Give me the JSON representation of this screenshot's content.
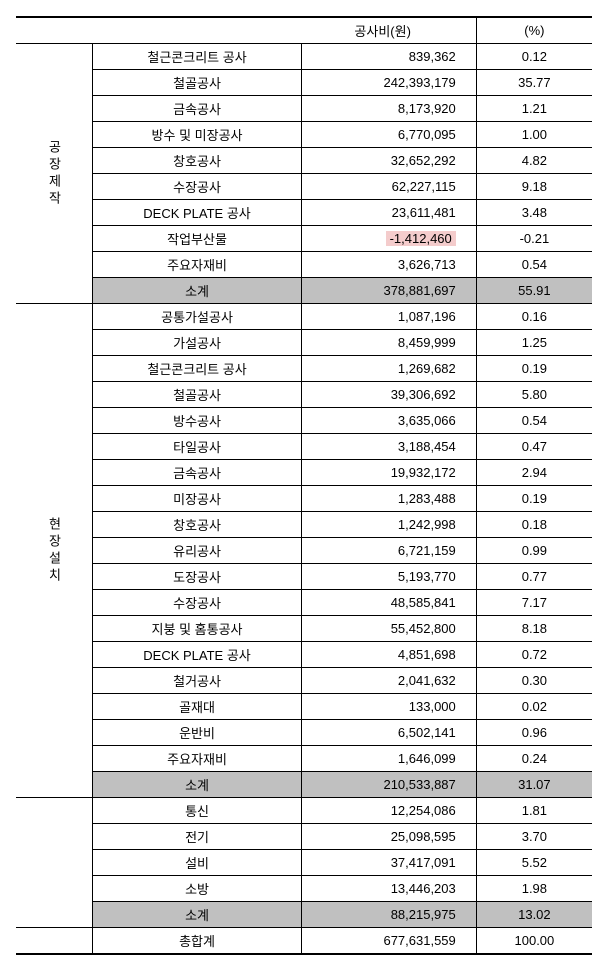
{
  "header": {
    "cost": "공사비(원)",
    "pct": "(%)"
  },
  "sections": [
    {
      "label": "공장제작",
      "rows": [
        {
          "name": "철근콘크리트 공사",
          "cost": "839,362",
          "pct": "0.12"
        },
        {
          "name": "철골공사",
          "cost": "242,393,179",
          "pct": "35.77"
        },
        {
          "name": "금속공사",
          "cost": "8,173,920",
          "pct": "1.21"
        },
        {
          "name": "방수 및 미장공사",
          "cost": "6,770,095",
          "pct": "1.00"
        },
        {
          "name": "창호공사",
          "cost": "32,652,292",
          "pct": "4.82"
        },
        {
          "name": "수장공사",
          "cost": "62,227,115",
          "pct": "9.18"
        },
        {
          "name": "DECK PLATE 공사",
          "cost": "23,611,481",
          "pct": "3.48"
        },
        {
          "name": "작업부산물",
          "cost": "-1,412,460",
          "pct": "-0.21",
          "neg": true
        },
        {
          "name": "주요자재비",
          "cost": "3,626,713",
          "pct": "0.54"
        }
      ],
      "subtotal": {
        "name": "소계",
        "cost": "378,881,697",
        "pct": "55.91"
      }
    },
    {
      "label": "현장설치",
      "rows": [
        {
          "name": "공통가설공사",
          "cost": "1,087,196",
          "pct": "0.16"
        },
        {
          "name": "가설공사",
          "cost": "8,459,999",
          "pct": "1.25"
        },
        {
          "name": "철근콘크리트 공사",
          "cost": "1,269,682",
          "pct": "0.19"
        },
        {
          "name": "철골공사",
          "cost": "39,306,692",
          "pct": "5.80"
        },
        {
          "name": "방수공사",
          "cost": "3,635,066",
          "pct": "0.54"
        },
        {
          "name": "타일공사",
          "cost": "3,188,454",
          "pct": "0.47"
        },
        {
          "name": "금속공사",
          "cost": "19,932,172",
          "pct": "2.94"
        },
        {
          "name": "미장공사",
          "cost": "1,283,488",
          "pct": "0.19"
        },
        {
          "name": "창호공사",
          "cost": "1,242,998",
          "pct": "0.18"
        },
        {
          "name": "유리공사",
          "cost": "6,721,159",
          "pct": "0.99"
        },
        {
          "name": "도장공사",
          "cost": "5,193,770",
          "pct": "0.77"
        },
        {
          "name": "수장공사",
          "cost": "48,585,841",
          "pct": "7.17"
        },
        {
          "name": "지붕 및 홈통공사",
          "cost": "55,452,800",
          "pct": "8.18"
        },
        {
          "name": "DECK PLATE 공사",
          "cost": "4,851,698",
          "pct": "0.72"
        },
        {
          "name": "철거공사",
          "cost": "2,041,632",
          "pct": "0.30"
        },
        {
          "name": "골재대",
          "cost": "133,000",
          "pct": "0.02"
        },
        {
          "name": "운반비",
          "cost": "6,502,141",
          "pct": "0.96"
        },
        {
          "name": "주요자재비",
          "cost": "1,646,099",
          "pct": "0.24"
        }
      ],
      "subtotal": {
        "name": "소계",
        "cost": "210,533,887",
        "pct": "31.07"
      }
    },
    {
      "label": "",
      "rows": [
        {
          "name": "통신",
          "cost": "12,254,086",
          "pct": "1.81"
        },
        {
          "name": "전기",
          "cost": "25,098,595",
          "pct": "3.70"
        },
        {
          "name": "설비",
          "cost": "37,417,091",
          "pct": "5.52"
        },
        {
          "name": "소방",
          "cost": "13,446,203",
          "pct": "1.98"
        }
      ],
      "subtotal": {
        "name": "소계",
        "cost": "88,215,975",
        "pct": "13.02"
      }
    }
  ],
  "grand": {
    "name": "총합계",
    "cost": "677,631,559",
    "pct": "100.00"
  }
}
